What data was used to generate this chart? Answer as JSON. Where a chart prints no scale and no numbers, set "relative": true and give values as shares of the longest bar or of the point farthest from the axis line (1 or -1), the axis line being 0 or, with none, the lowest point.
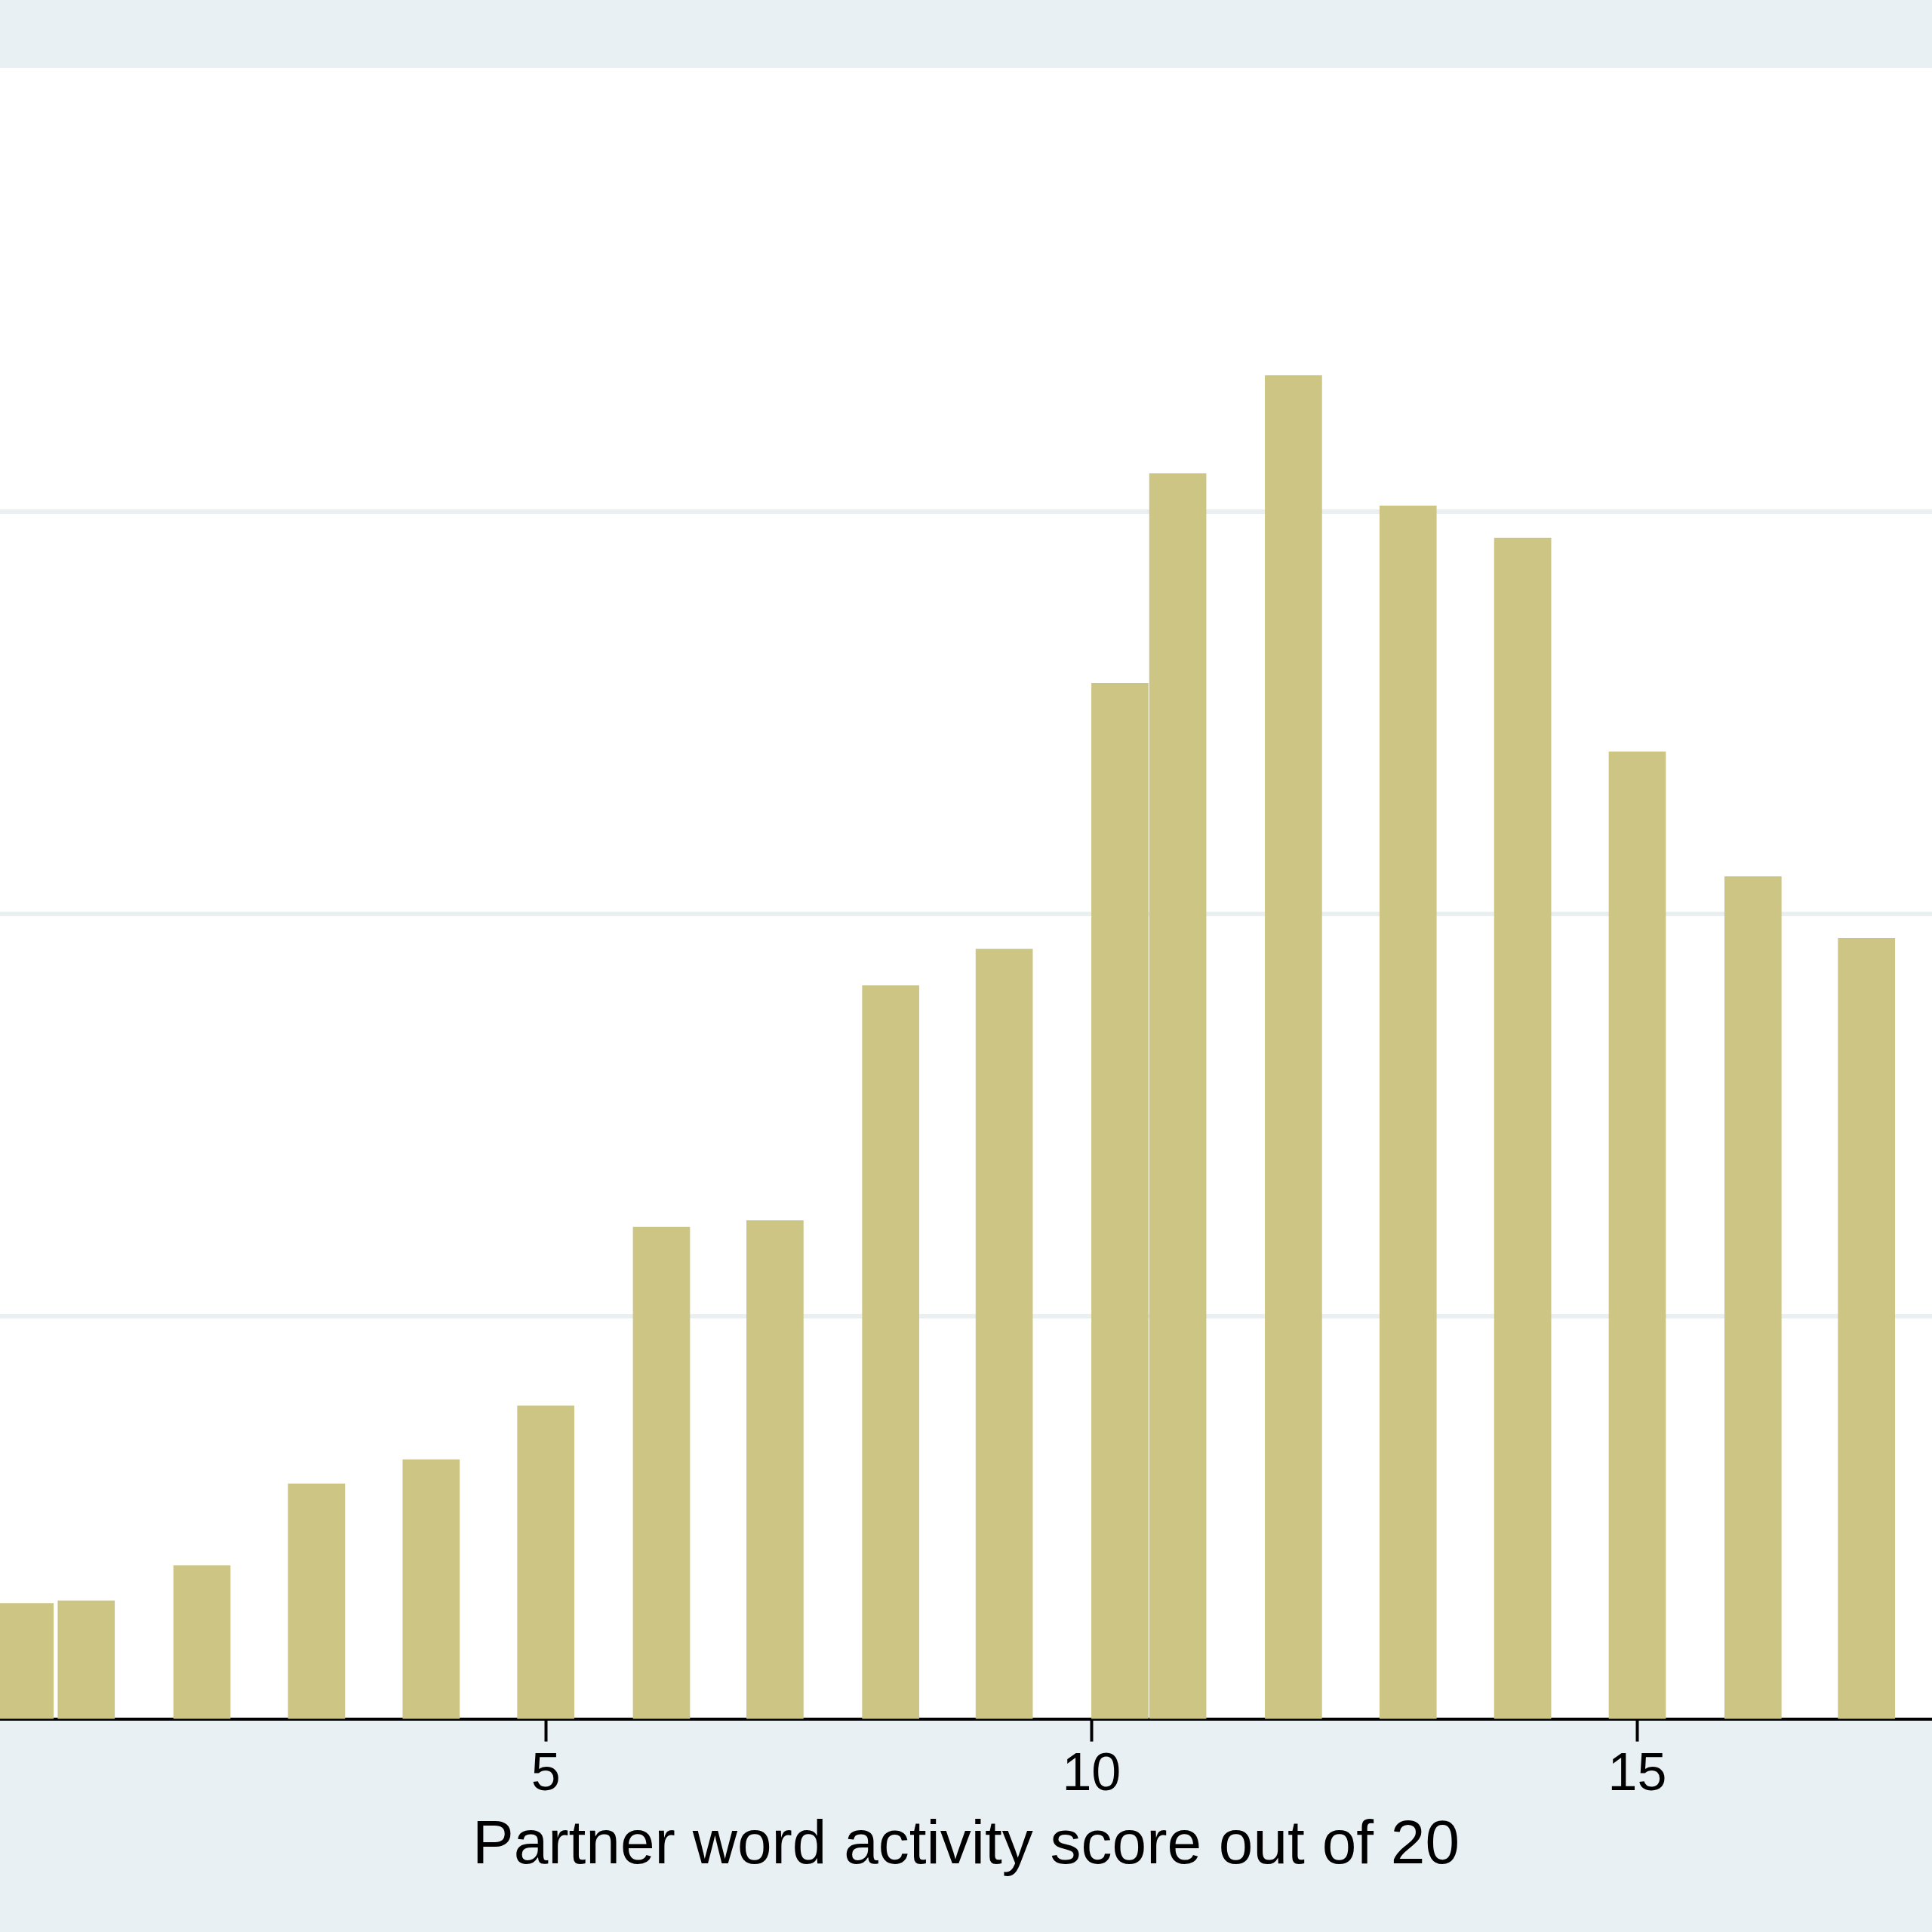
{
  "chart_data": {
    "type": "bar",
    "xlabel": "Partner word activity score out of 20",
    "relative": true,
    "x": [
      0.23,
      0.79,
      1.85,
      2.9,
      3.95,
      5.0,
      6.06,
      7.1,
      8.16,
      9.2,
      10.26,
      10.79,
      11.85,
      12.9,
      13.95,
      15.0,
      16.06,
      17.1
    ],
    "values": [
      0.086,
      0.088,
      0.114,
      0.175,
      0.193,
      0.233,
      0.366,
      0.371,
      0.546,
      0.573,
      0.771,
      0.927,
      1.0,
      0.903,
      0.879,
      0.72,
      0.627,
      0.581
    ],
    "color": "#ccc584",
    "xlim": [
      0,
      17.7
    ],
    "xticks": [
      5,
      10,
      15
    ],
    "grid": "y",
    "legend": false
  }
}
